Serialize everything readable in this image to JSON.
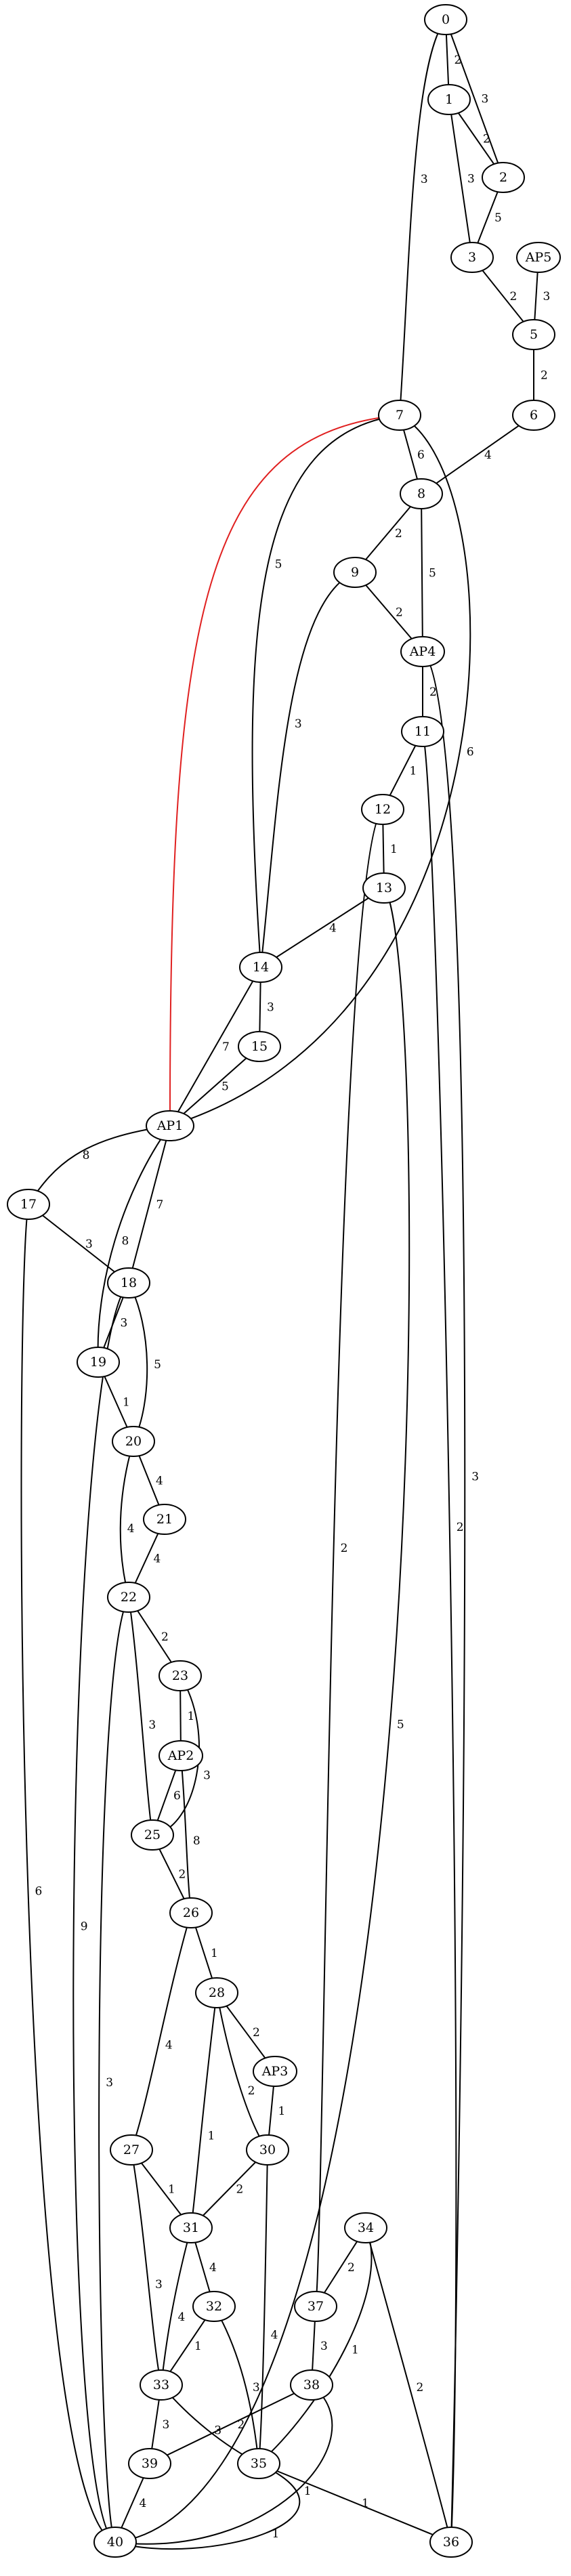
{
  "colors": {
    "edge": "#000000",
    "highlight_edge": "#e02020",
    "node_fill": "#ffffff"
  },
  "nodes": [
    {
      "id": "0",
      "label": "0"
    },
    {
      "id": "1",
      "label": "1"
    },
    {
      "id": "2",
      "label": "2"
    },
    {
      "id": "3",
      "label": "3"
    },
    {
      "id": "AP5",
      "label": "AP5"
    },
    {
      "id": "5",
      "label": "5"
    },
    {
      "id": "6",
      "label": "6"
    },
    {
      "id": "7",
      "label": "7"
    },
    {
      "id": "8",
      "label": "8"
    },
    {
      "id": "9",
      "label": "9"
    },
    {
      "id": "AP4",
      "label": "AP4"
    },
    {
      "id": "11",
      "label": "11"
    },
    {
      "id": "12",
      "label": "12"
    },
    {
      "id": "13",
      "label": "13"
    },
    {
      "id": "14",
      "label": "14"
    },
    {
      "id": "15",
      "label": "15"
    },
    {
      "id": "AP1",
      "label": "AP1"
    },
    {
      "id": "17",
      "label": "17"
    },
    {
      "id": "18",
      "label": "18"
    },
    {
      "id": "19",
      "label": "19"
    },
    {
      "id": "20",
      "label": "20"
    },
    {
      "id": "21",
      "label": "21"
    },
    {
      "id": "22",
      "label": "22"
    },
    {
      "id": "23",
      "label": "23"
    },
    {
      "id": "AP2",
      "label": "AP2"
    },
    {
      "id": "25",
      "label": "25"
    },
    {
      "id": "26",
      "label": "26"
    },
    {
      "id": "28",
      "label": "28"
    },
    {
      "id": "AP3",
      "label": "AP3"
    },
    {
      "id": "27",
      "label": "27"
    },
    {
      "id": "30",
      "label": "30"
    },
    {
      "id": "31",
      "label": "31"
    },
    {
      "id": "34",
      "label": "34"
    },
    {
      "id": "32",
      "label": "32"
    },
    {
      "id": "37",
      "label": "37"
    },
    {
      "id": "33",
      "label": "33"
    },
    {
      "id": "38",
      "label": "38"
    },
    {
      "id": "39",
      "label": "39"
    },
    {
      "id": "35",
      "label": "35"
    },
    {
      "id": "40",
      "label": "40"
    },
    {
      "id": "36",
      "label": "36"
    }
  ],
  "edges": [
    {
      "from": "0",
      "to": "1",
      "weight": "2"
    },
    {
      "from": "0",
      "to": "2",
      "weight": "3"
    },
    {
      "from": "0",
      "to": "7",
      "weight": "3"
    },
    {
      "from": "1",
      "to": "2",
      "weight": "2"
    },
    {
      "from": "1",
      "to": "3",
      "weight": "3"
    },
    {
      "from": "2",
      "to": "3",
      "weight": "5"
    },
    {
      "from": "3",
      "to": "5",
      "weight": "2"
    },
    {
      "from": "AP5",
      "to": "5",
      "weight": "3"
    },
    {
      "from": "5",
      "to": "6",
      "weight": "2"
    },
    {
      "from": "6",
      "to": "8",
      "weight": "4"
    },
    {
      "from": "7",
      "to": "8",
      "weight": "6"
    },
    {
      "from": "7",
      "to": "14",
      "weight": "5"
    },
    {
      "from": "7",
      "to": "AP1",
      "weight": "6"
    },
    {
      "from": "7",
      "to": "AP1",
      "weight": "",
      "highlight": true
    },
    {
      "from": "8",
      "to": "9",
      "weight": "2"
    },
    {
      "from": "8",
      "to": "AP4",
      "weight": "5"
    },
    {
      "from": "9",
      "to": "AP4",
      "weight": "2"
    },
    {
      "from": "9",
      "to": "14",
      "weight": "3"
    },
    {
      "from": "AP4",
      "to": "11",
      "weight": "2"
    },
    {
      "from": "AP4",
      "to": "36",
      "weight": "3"
    },
    {
      "from": "11",
      "to": "12",
      "weight": "1"
    },
    {
      "from": "11",
      "to": "36",
      "weight": "2"
    },
    {
      "from": "12",
      "to": "13",
      "weight": "1"
    },
    {
      "from": "12",
      "to": "37",
      "weight": "2"
    },
    {
      "from": "13",
      "to": "14",
      "weight": "4"
    },
    {
      "from": "13",
      "to": "40",
      "weight": "5"
    },
    {
      "from": "14",
      "to": "15",
      "weight": "3"
    },
    {
      "from": "14",
      "to": "AP1",
      "weight": "7"
    },
    {
      "from": "15",
      "to": "AP1",
      "weight": "5"
    },
    {
      "from": "AP1",
      "to": "17",
      "weight": "8"
    },
    {
      "from": "AP1",
      "to": "18",
      "weight": "7"
    },
    {
      "from": "AP1",
      "to": "19",
      "weight": "8"
    },
    {
      "from": "17",
      "to": "18",
      "weight": "3"
    },
    {
      "from": "17",
      "to": "40",
      "weight": "6"
    },
    {
      "from": "18",
      "to": "19",
      "weight": "3"
    },
    {
      "from": "18",
      "to": "20",
      "weight": "5"
    },
    {
      "from": "18",
      "to": "40",
      "weight": "9"
    },
    {
      "from": "19",
      "to": "20",
      "weight": "1"
    },
    {
      "from": "20",
      "to": "21",
      "weight": "4"
    },
    {
      "from": "20",
      "to": "22",
      "weight": "4"
    },
    {
      "from": "21",
      "to": "22",
      "weight": "4"
    },
    {
      "from": "22",
      "to": "23",
      "weight": "2"
    },
    {
      "from": "22",
      "to": "25",
      "weight": "3"
    },
    {
      "from": "22",
      "to": "40",
      "weight": "3"
    },
    {
      "from": "23",
      "to": "AP2",
      "weight": "1"
    },
    {
      "from": "23",
      "to": "25",
      "weight": "3"
    },
    {
      "from": "AP2",
      "to": "25",
      "weight": "6"
    },
    {
      "from": "AP2",
      "to": "26",
      "weight": "8"
    },
    {
      "from": "25",
      "to": "26",
      "weight": "2"
    },
    {
      "from": "26",
      "to": "28",
      "weight": "1"
    },
    {
      "from": "26",
      "to": "27",
      "weight": "4"
    },
    {
      "from": "28",
      "to": "AP3",
      "weight": "2"
    },
    {
      "from": "28",
      "to": "30",
      "weight": "2"
    },
    {
      "from": "28",
      "to": "31",
      "weight": "1"
    },
    {
      "from": "AP3",
      "to": "30",
      "weight": "1"
    },
    {
      "from": "27",
      "to": "31",
      "weight": "1"
    },
    {
      "from": "27",
      "to": "33",
      "weight": "3"
    },
    {
      "from": "30",
      "to": "31",
      "weight": "2"
    },
    {
      "from": "30",
      "to": "35",
      "weight": "4"
    },
    {
      "from": "31",
      "to": "32",
      "weight": "4"
    },
    {
      "from": "31",
      "to": "33",
      "weight": "4"
    },
    {
      "from": "34",
      "to": "37",
      "weight": "2"
    },
    {
      "from": "34",
      "to": "35",
      "weight": "1"
    },
    {
      "from": "34",
      "to": "36",
      "weight": "2"
    },
    {
      "from": "32",
      "to": "33",
      "weight": "1"
    },
    {
      "from": "32",
      "to": "35",
      "weight": "3"
    },
    {
      "from": "37",
      "to": "38",
      "weight": "3"
    },
    {
      "from": "33",
      "to": "39",
      "weight": "3"
    },
    {
      "from": "33",
      "to": "35",
      "weight": "3"
    },
    {
      "from": "38",
      "to": "39",
      "weight": "2"
    },
    {
      "from": "38",
      "to": "40",
      "weight": "1"
    },
    {
      "from": "39",
      "to": "40",
      "weight": "4"
    },
    {
      "from": "35",
      "to": "36",
      "weight": "1"
    },
    {
      "from": "35",
      "to": "40",
      "weight": "1"
    }
  ]
}
